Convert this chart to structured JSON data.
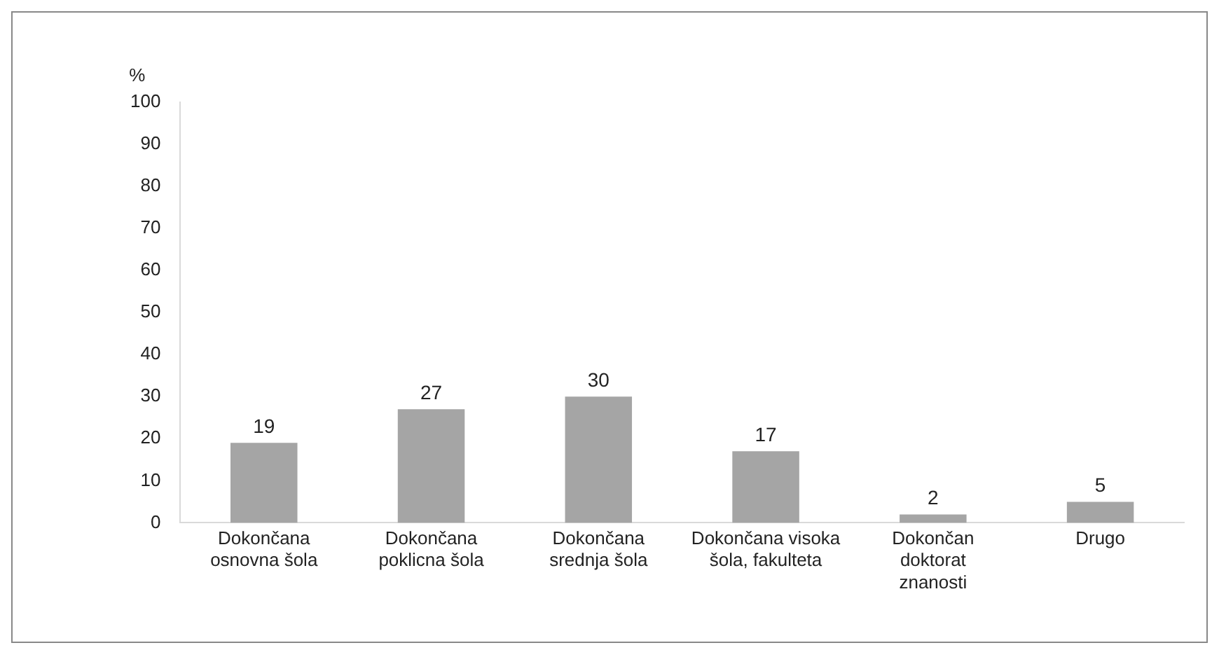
{
  "chart_data": {
    "type": "bar",
    "ylabel": "%",
    "categories": [
      "Dokončana osnovna šola",
      "Dokončana poklicna šola",
      "Dokončana srednja šola",
      "Dokončana visoka šola, fakulteta",
      "Dokončan doktorat znanosti",
      "Drugo"
    ],
    "values": [
      19,
      27,
      30,
      17,
      2,
      5
    ],
    "color": "#a5a5a5",
    "ylim": [
      0,
      100
    ],
    "yticks": [
      0,
      10,
      20,
      30,
      40,
      50,
      60,
      70,
      80,
      90,
      100
    ],
    "grid": false,
    "legend": false,
    "data_labels": true
  }
}
